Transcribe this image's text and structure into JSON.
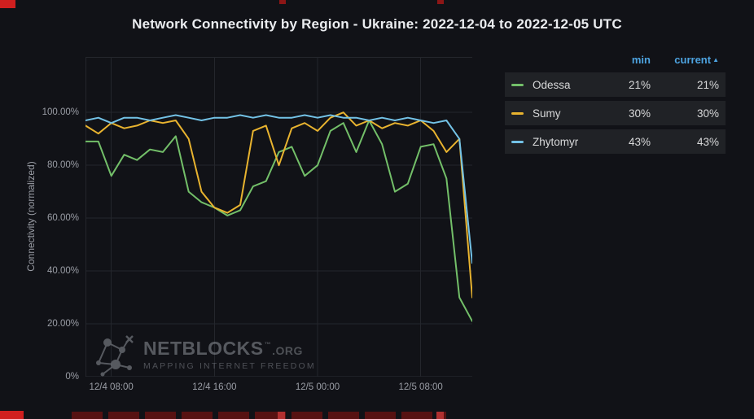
{
  "page": {
    "bg": "#111217",
    "title": "Network Connectivity by Region - Ukraine: 2022-12-04 to 2022-12-05 UTC"
  },
  "watermark": {
    "brand": "NETBLOCKS",
    "tm": "™",
    "brand_suffix": ".ORG",
    "tagline": "MAPPING INTERNET FREEDOM"
  },
  "legend": {
    "header_color": "#4DA3E0",
    "headers": {
      "min": "min",
      "current": "current",
      "sort_icon": "▲"
    },
    "rows": [
      {
        "name": "Odessa",
        "min": "21%",
        "current": "21%",
        "color": "#73BF69"
      },
      {
        "name": "Sumy",
        "min": "30%",
        "current": "30%",
        "color": "#E8B32F"
      },
      {
        "name": "Zhytomyr",
        "min": "43%",
        "current": "43%",
        "color": "#73C2E6"
      }
    ]
  },
  "chart_data": {
    "type": "line",
    "title": "Network Connectivity by Region - Ukraine: 2022-12-04 to 2022-12-05 UTC",
    "xlabel": "",
    "ylabel": "Connectivity (normalized)",
    "ylim": [
      0,
      121
    ],
    "grid": true,
    "legend_position": "right",
    "x": [
      "12/4 06:00",
      "12/4 07:00",
      "12/4 08:00",
      "12/4 09:00",
      "12/4 10:00",
      "12/4 11:00",
      "12/4 12:00",
      "12/4 13:00",
      "12/4 14:00",
      "12/4 15:00",
      "12/4 16:00",
      "12/4 17:00",
      "12/4 18:00",
      "12/4 19:00",
      "12/4 20:00",
      "12/4 21:00",
      "12/4 22:00",
      "12/4 23:00",
      "12/5 00:00",
      "12/5 01:00",
      "12/5 02:00",
      "12/5 03:00",
      "12/5 04:00",
      "12/5 05:00",
      "12/5 06:00",
      "12/5 07:00",
      "12/5 08:00",
      "12/5 09:00",
      "12/5 10:00",
      "12/5 11:00",
      "12/5 12:00"
    ],
    "x_tick_indices": [
      2,
      10,
      18,
      26
    ],
    "x_tick_labels": [
      "12/4 08:00",
      "12/4 16:00",
      "12/5 00:00",
      "12/5 08:00"
    ],
    "y_ticks": [
      {
        "value": 0,
        "label": "0%"
      },
      {
        "value": 20,
        "label": "20.00%"
      },
      {
        "value": 40,
        "label": "40.00%"
      },
      {
        "value": 60,
        "label": "60.00%"
      },
      {
        "value": 80,
        "label": "80.00%"
      },
      {
        "value": 100,
        "label": "100.00%"
      }
    ],
    "series": [
      {
        "name": "Odessa",
        "color": "#73BF69",
        "values": [
          89,
          89,
          76,
          84,
          82,
          86,
          85,
          91,
          70,
          66,
          64,
          61,
          63,
          72,
          74,
          85,
          87,
          76,
          80,
          93,
          96,
          85,
          97,
          88,
          70,
          73,
          87,
          88,
          75,
          30,
          21
        ]
      },
      {
        "name": "Sumy",
        "color": "#E8B32F",
        "values": [
          95,
          92,
          96,
          94,
          95,
          97,
          96,
          97,
          90,
          70,
          64,
          62,
          65,
          93,
          95,
          80,
          94,
          96,
          93,
          98,
          100,
          95,
          97,
          94,
          96,
          95,
          97,
          93,
          85,
          90,
          30
        ]
      },
      {
        "name": "Zhytomyr",
        "color": "#73C2E6",
        "values": [
          97,
          98,
          96,
          98,
          98,
          97,
          98,
          99,
          98,
          97,
          98,
          98,
          99,
          98,
          99,
          98,
          98,
          99,
          98,
          99,
          98,
          98,
          97,
          98,
          97,
          98,
          97,
          96,
          97,
          90,
          43
        ]
      }
    ]
  }
}
